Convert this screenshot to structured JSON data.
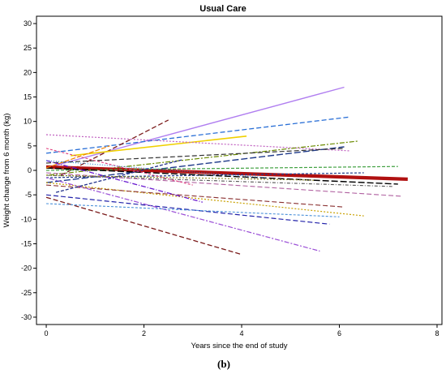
{
  "chart_data": {
    "type": "line",
    "title": "Usual Care",
    "xlabel": "Years since the end of study",
    "ylabel": "Weight change from 6 month (kg)",
    "caption": "(b)",
    "xlim": [
      -0.2,
      8.1
    ],
    "ylim": [
      -31.5,
      31.5
    ],
    "xticks": [
      0,
      2,
      4,
      6,
      8
    ],
    "yticks": [
      30,
      25,
      20,
      15,
      10,
      5,
      0,
      -5,
      -10,
      -15,
      -20,
      -25,
      -30
    ],
    "grid": false,
    "legend": "none",
    "series": [
      {
        "x": [
          0,
          6.1
        ],
        "y": [
          0.5,
          17.0
        ],
        "color": "#b07ef0",
        "dash": "solid",
        "width": 1.4
      },
      {
        "x": [
          0,
          6.2
        ],
        "y": [
          3.5,
          10.9
        ],
        "color": "#2a6fd6",
        "dash": "6,3",
        "width": 1.3
      },
      {
        "x": [
          0.3,
          2.5
        ],
        "y": [
          -1.0,
          10.3
        ],
        "color": "#7a1a1a",
        "dash": "6,3",
        "width": 1.3
      },
      {
        "x": [
          0.5,
          4.1
        ],
        "y": [
          3.0,
          7.0
        ],
        "color": "#f0d000",
        "dash": "solid",
        "width": 1.6
      },
      {
        "x": [
          0,
          6.2
        ],
        "y": [
          7.3,
          4.0
        ],
        "color": "#c060c0",
        "dash": "2,2",
        "width": 1.2
      },
      {
        "x": [
          0,
          6.4
        ],
        "y": [
          -1.0,
          6.0
        ],
        "color": "#6a8a00",
        "dash": "2,2,6,2",
        "width": 1.2
      },
      {
        "x": [
          0,
          6.1
        ],
        "y": [
          -2.5,
          4.8
        ],
        "color": "#1f3a8a",
        "dash": "8,3",
        "width": 1.4
      },
      {
        "x": [
          0,
          6.1
        ],
        "y": [
          1.5,
          4.5
        ],
        "color": "#333333",
        "dash": "6,3",
        "width": 1.2
      },
      {
        "x": [
          0,
          7.4
        ],
        "y": [
          0.7,
          -1.8
        ],
        "color": "#b01010",
        "dash": "solid",
        "width": 4.2
      },
      {
        "x": [
          0,
          7.2
        ],
        "y": [
          0.0,
          0.8
        ],
        "color": "#40a040",
        "dash": "4,2",
        "width": 1.2
      },
      {
        "x": [
          0,
          6.5
        ],
        "y": [
          -1.5,
          -0.5
        ],
        "color": "#1f3a8a",
        "dash": "3,2",
        "width": 1.2
      },
      {
        "x": [
          0,
          7.2
        ],
        "y": [
          0.5,
          -2.8
        ],
        "color": "#000000",
        "dash": "8,3",
        "width": 1.4
      },
      {
        "x": [
          0,
          7.1
        ],
        "y": [
          -1.0,
          -3.3
        ],
        "color": "#555555",
        "dash": "4,2,1,2",
        "width": 1.1
      },
      {
        "x": [
          0,
          7.3
        ],
        "y": [
          -0.5,
          -5.3
        ],
        "color": "#b060a0",
        "dash": "6,3",
        "width": 1.1
      },
      {
        "x": [
          0,
          6.5
        ],
        "y": [
          -2.5,
          -9.3
        ],
        "color": "#c8a000",
        "dash": "2,2",
        "width": 1.2
      },
      {
        "x": [
          0,
          6.1
        ],
        "y": [
          -3.0,
          -7.5
        ],
        "color": "#8a3030",
        "dash": "6,3",
        "width": 1.1
      },
      {
        "x": [
          0,
          5.8
        ],
        "y": [
          -5.0,
          -11.0
        ],
        "color": "#2222aa",
        "dash": "6,3",
        "width": 1.2
      },
      {
        "x": [
          0,
          5.6
        ],
        "y": [
          -1.5,
          -16.5
        ],
        "color": "#9a4ed6",
        "dash": "2,2,6,2",
        "width": 1.2
      },
      {
        "x": [
          0,
          4.0
        ],
        "y": [
          -5.5,
          -17.2
        ],
        "color": "#7a1a1a",
        "dash": "6,3",
        "width": 1.3
      },
      {
        "x": [
          0,
          6.0
        ],
        "y": [
          -6.8,
          -9.5
        ],
        "color": "#4a90d9",
        "dash": "3,2",
        "width": 1.1
      },
      {
        "x": [
          0,
          3.2
        ],
        "y": [
          2.0,
          -6.5
        ],
        "color": "#6a1ad0",
        "dash": "6,2,1,2",
        "width": 1.3
      },
      {
        "x": [
          0.2,
          2.8
        ],
        "y": [
          -4.5,
          2.2
        ],
        "color": "#20308a",
        "dash": "4,2",
        "width": 1.3
      },
      {
        "x": [
          0,
          3.0
        ],
        "y": [
          4.5,
          -3.0
        ],
        "color": "#e04080",
        "dash": "3,2",
        "width": 1.1
      },
      {
        "x": [
          0,
          1.3
        ],
        "y": [
          0.5,
          5.0
        ],
        "color": "#f08000",
        "dash": "6,2",
        "width": 1.2
      },
      {
        "x": [
          0,
          5.5
        ],
        "y": [
          -1.0,
          -2.0
        ],
        "color": "#8a8a20",
        "dash": "2,2",
        "width": 1.1
      },
      {
        "x": [
          0,
          4.5
        ],
        "y": [
          2.0,
          -1.5
        ],
        "color": "#2c8ad8",
        "dash": "1,2",
        "width": 1.1
      }
    ]
  }
}
